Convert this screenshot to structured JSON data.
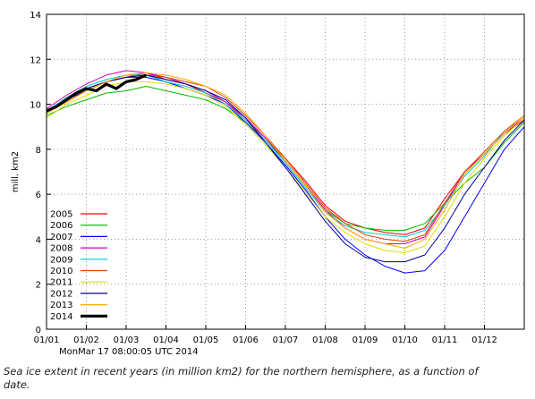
{
  "caption": "Sea ice extent in recent years (in million km2) for the northern hemisphere, as a function of date.",
  "chart_data": {
    "type": "line",
    "ylabel": "mill. km2",
    "ylim": [
      0,
      14
    ],
    "yticks": [
      0,
      2,
      4,
      6,
      8,
      10,
      12,
      14
    ],
    "xlim": [
      0,
      12
    ],
    "xtick_labels": [
      "01/01",
      "01/02",
      "01/03",
      "01/04",
      "01/05",
      "01/06",
      "01/07",
      "01/08",
      "01/09",
      "01/10",
      "01/11",
      "01/12"
    ],
    "timestamp": "MonMar 17 08:00:05 UTC 2014",
    "grid": true,
    "legend_position": "bottom-left",
    "series": [
      {
        "name": "2005",
        "color": "#ff0000",
        "x": [
          0,
          0.5,
          1,
          1.5,
          2,
          2.5,
          3,
          3.5,
          4,
          4.5,
          5,
          5.5,
          6,
          6.5,
          7,
          7.5,
          8,
          8.5,
          9,
          9.5,
          10,
          10.5,
          11,
          11.5,
          12
        ],
        "y": [
          9.6,
          10.1,
          10.6,
          11.0,
          11.2,
          11.4,
          11.1,
          10.9,
          10.5,
          10.1,
          9.3,
          8.5,
          7.6,
          6.6,
          5.5,
          4.8,
          4.5,
          4.3,
          4.2,
          4.5,
          5.8,
          7.0,
          7.8,
          8.7,
          9.3
        ]
      },
      {
        "name": "2006",
        "color": "#00bb00",
        "x": [
          0,
          0.5,
          1,
          1.5,
          2,
          2.5,
          3,
          3.5,
          4,
          4.5,
          5,
          5.5,
          6,
          6.5,
          7,
          7.5,
          8,
          8.5,
          9,
          9.5,
          10,
          10.5,
          11,
          11.5,
          12
        ],
        "y": [
          9.5,
          9.9,
          10.2,
          10.5,
          10.6,
          10.8,
          10.6,
          10.4,
          10.2,
          9.8,
          9.2,
          8.4,
          7.5,
          6.4,
          5.3,
          4.7,
          4.5,
          4.4,
          4.4,
          4.7,
          5.6,
          6.5,
          7.2,
          8.3,
          9.2
        ]
      },
      {
        "name": "2007",
        "color": "#0000ff",
        "x": [
          0,
          0.5,
          1,
          1.5,
          2,
          2.5,
          3,
          3.5,
          4,
          4.5,
          5,
          5.5,
          6,
          6.5,
          7,
          7.5,
          8,
          8.5,
          9,
          9.5,
          10,
          10.5,
          11,
          11.5,
          12
        ],
        "y": [
          9.6,
          10.2,
          10.6,
          11.0,
          11.2,
          11.2,
          11.0,
          10.7,
          10.4,
          10.0,
          9.2,
          8.3,
          7.3,
          6.2,
          5.0,
          4.0,
          3.3,
          2.8,
          2.5,
          2.6,
          3.5,
          5.0,
          6.5,
          8.0,
          9.0
        ]
      },
      {
        "name": "2008",
        "color": "#cc00cc",
        "x": [
          0,
          0.5,
          1,
          1.5,
          2,
          2.5,
          3,
          3.5,
          4,
          4.5,
          5,
          5.5,
          6,
          6.5,
          7,
          7.5,
          8,
          8.5,
          9,
          9.5,
          10,
          10.5,
          11,
          11.5,
          12
        ],
        "y": [
          9.8,
          10.4,
          10.9,
          11.3,
          11.5,
          11.4,
          11.2,
          10.9,
          10.6,
          10.1,
          9.4,
          8.5,
          7.5,
          6.4,
          5.3,
          4.5,
          4.0,
          3.8,
          3.8,
          4.1,
          5.5,
          7.0,
          7.8,
          8.7,
          9.4
        ]
      },
      {
        "name": "2009",
        "color": "#00cccc",
        "x": [
          0,
          0.5,
          1,
          1.5,
          2,
          2.5,
          3,
          3.5,
          4,
          4.5,
          5,
          5.5,
          6,
          6.5,
          7,
          7.5,
          8,
          8.5,
          9,
          9.5,
          10,
          10.5,
          11,
          11.5,
          12
        ],
        "y": [
          9.7,
          10.3,
          10.8,
          11.1,
          11.3,
          11.3,
          11.0,
          10.8,
          10.5,
          10.0,
          9.3,
          8.4,
          7.4,
          6.3,
          5.2,
          4.6,
          4.3,
          4.2,
          4.1,
          4.4,
          5.5,
          6.8,
          7.7,
          8.8,
          9.5
        ]
      },
      {
        "name": "2010",
        "color": "#dd4400",
        "x": [
          0,
          0.5,
          1,
          1.5,
          2,
          2.5,
          3,
          3.5,
          4,
          4.5,
          5,
          5.5,
          6,
          6.5,
          7,
          7.5,
          8,
          8.5,
          9,
          9.5,
          10,
          10.5,
          11,
          11.5,
          12
        ],
        "y": [
          9.6,
          10.1,
          10.6,
          11.0,
          11.2,
          11.3,
          11.2,
          11.0,
          10.8,
          10.3,
          9.5,
          8.6,
          7.6,
          6.5,
          5.4,
          4.7,
          4.2,
          4.0,
          3.9,
          4.2,
          5.6,
          7.0,
          7.9,
          8.8,
          9.5
        ]
      },
      {
        "name": "2011",
        "color": "#dddd00",
        "x": [
          0,
          0.5,
          1,
          1.5,
          2,
          2.5,
          3,
          3.5,
          4,
          4.5,
          5,
          5.5,
          6,
          6.5,
          7,
          7.5,
          8,
          8.5,
          9,
          9.5,
          10,
          10.5,
          11,
          11.5,
          12
        ],
        "y": [
          9.4,
          10.0,
          10.4,
          10.8,
          11.0,
          11.0,
          10.9,
          10.7,
          10.4,
          9.9,
          9.1,
          8.2,
          7.2,
          6.1,
          5.0,
          4.3,
          3.8,
          3.5,
          3.4,
          3.7,
          5.0,
          6.5,
          7.6,
          8.6,
          9.4
        ]
      },
      {
        "name": "2012",
        "color": "#000099",
        "x": [
          0,
          0.5,
          1,
          1.5,
          2,
          2.5,
          3,
          3.5,
          4,
          4.5,
          5,
          5.5,
          6,
          6.5,
          7,
          7.5,
          8,
          8.5,
          9,
          9.5,
          10,
          10.5,
          11,
          11.5,
          12
        ],
        "y": [
          9.6,
          10.2,
          10.7,
          11.0,
          11.2,
          11.3,
          11.1,
          10.9,
          10.6,
          10.2,
          9.4,
          8.3,
          7.2,
          6.0,
          4.8,
          3.8,
          3.2,
          3.0,
          3.0,
          3.3,
          4.5,
          6.0,
          7.2,
          8.4,
          9.3
        ]
      },
      {
        "name": "2013",
        "color": "#ffaa00",
        "x": [
          0,
          0.5,
          1,
          1.5,
          2,
          2.5,
          3,
          3.5,
          4,
          4.5,
          5,
          5.5,
          6,
          6.5,
          7,
          7.5,
          8,
          8.5,
          9,
          9.5,
          10,
          10.5,
          11,
          11.5,
          12
        ],
        "y": [
          9.6,
          10.1,
          10.6,
          11.0,
          11.3,
          11.4,
          11.3,
          11.1,
          10.8,
          10.4,
          9.6,
          8.6,
          7.5,
          6.4,
          5.2,
          4.5,
          4.0,
          3.8,
          3.6,
          4.0,
          5.3,
          6.9,
          7.8,
          8.7,
          9.5
        ]
      },
      {
        "name": "2014",
        "color": "#000000",
        "x": [
          0,
          0.25,
          0.5,
          0.75,
          1,
          1.25,
          1.5,
          1.75,
          2,
          2.25,
          2.5
        ],
        "y": [
          9.7,
          9.9,
          10.2,
          10.5,
          10.7,
          10.6,
          10.9,
          10.7,
          11.0,
          11.1,
          11.3
        ]
      }
    ]
  }
}
